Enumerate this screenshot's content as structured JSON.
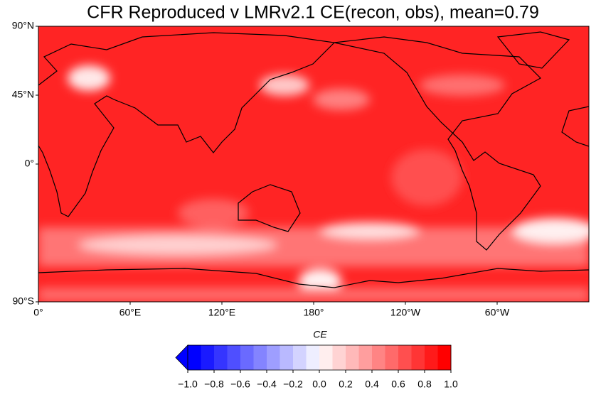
{
  "title": "CFR Reproduced v LMRv2.1 CE(recon, obs), mean=0.79",
  "lat_ticks": [
    {
      "value": 90,
      "label": "90°N"
    },
    {
      "value": 45,
      "label": "45°N"
    },
    {
      "value": 0,
      "label": "0°"
    },
    {
      "value": -90,
      "label": "90°S"
    }
  ],
  "lat_range": [
    -90,
    90
  ],
  "lon_ticks": [
    {
      "value": 0,
      "label": "0°"
    },
    {
      "value": 60,
      "label": "60°E"
    },
    {
      "value": 120,
      "label": "120°E"
    },
    {
      "value": 180,
      "label": "180°"
    },
    {
      "value": 240,
      "label": "120°W"
    },
    {
      "value": 300,
      "label": "60°W"
    }
  ],
  "lon_range": [
    0,
    360
  ],
  "colorbar": {
    "label": "CE",
    "range": [
      -1,
      1
    ],
    "ticks": [
      {
        "value": -1,
        "label": "−1.0"
      },
      {
        "value": -0.8,
        "label": "−0.8"
      },
      {
        "value": -0.6,
        "label": "−0.6"
      },
      {
        "value": -0.4,
        "label": "−0.4"
      },
      {
        "value": -0.2,
        "label": "−0.2"
      },
      {
        "value": 0,
        "label": "0.0"
      },
      {
        "value": 0.2,
        "label": "0.2"
      },
      {
        "value": 0.4,
        "label": "0.4"
      },
      {
        "value": 0.6,
        "label": "0.6"
      },
      {
        "value": 0.8,
        "label": "0.8"
      },
      {
        "value": 1,
        "label": "1.0"
      }
    ],
    "colors": [
      "#0000ff",
      "#1a1aff",
      "#3535ff",
      "#4f4fff",
      "#6a6aff",
      "#8484ff",
      "#9e9eff",
      "#b9b9ff",
      "#d3d3ff",
      "#eeeeff",
      "#ffeeee",
      "#ffd3d3",
      "#ffb9b9",
      "#ff9e9e",
      "#ff8484",
      "#ff6a6a",
      "#ff4f4f",
      "#ff3535",
      "#ff1a1a",
      "#ff0000"
    ],
    "extend_color": "#0000ff"
  }
}
